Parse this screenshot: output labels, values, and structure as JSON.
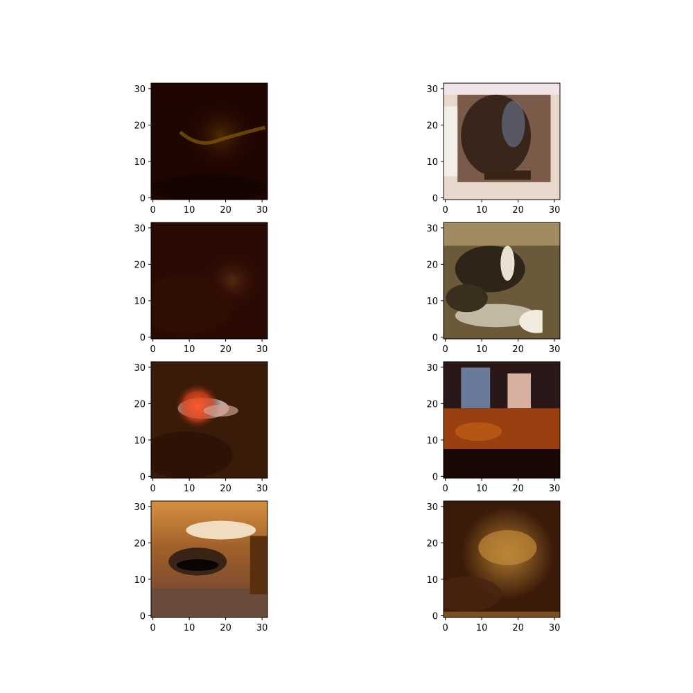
{
  "chart_data": {
    "type": "heatmap",
    "layout": {
      "rows": 4,
      "cols": 2
    },
    "image_size": [
      32,
      32
    ],
    "xlim": [
      -0.5,
      31.5
    ],
    "ylim": [
      31.5,
      -0.5
    ],
    "xticks": [
      0,
      10,
      20,
      30
    ],
    "yticks": [
      0,
      10,
      20,
      30
    ],
    "xtick_labels": [
      "0",
      "10",
      "20",
      "30"
    ],
    "ytick_labels": [
      "0",
      "10",
      "20",
      "30"
    ],
    "panels": [
      {
        "id": "panel-1",
        "colors": {
          "base": "#200600",
          "mid": "#3a1503",
          "accent": "#8a5a0c"
        }
      },
      {
        "id": "panel-2",
        "colors": {
          "base": "#e8d8cc",
          "mid": "#6b4a3a",
          "accent": "#2a1810"
        }
      },
      {
        "id": "panel-3",
        "colors": {
          "base": "#2a0a02",
          "mid": "#3d1708",
          "accent": "#5a2a14"
        }
      },
      {
        "id": "panel-4",
        "colors": {
          "base": "#6a5a3a",
          "mid": "#3a2e1e",
          "accent": "#e8e0d0"
        }
      },
      {
        "id": "panel-5",
        "colors": {
          "base": "#3a1a08",
          "mid": "#5a2e12",
          "accent": "#e84020"
        }
      },
      {
        "id": "panel-6",
        "colors": {
          "base": "#2a1010",
          "mid": "#9a4010",
          "accent": "#6a7a9a"
        }
      },
      {
        "id": "panel-7",
        "colors": {
          "base": "#d08a3a",
          "mid": "#5a3a2a",
          "accent": "#1a0a05"
        }
      },
      {
        "id": "panel-8",
        "colors": {
          "base": "#3a1a08",
          "mid": "#8a5a20",
          "accent": "#b07a30"
        }
      }
    ]
  }
}
